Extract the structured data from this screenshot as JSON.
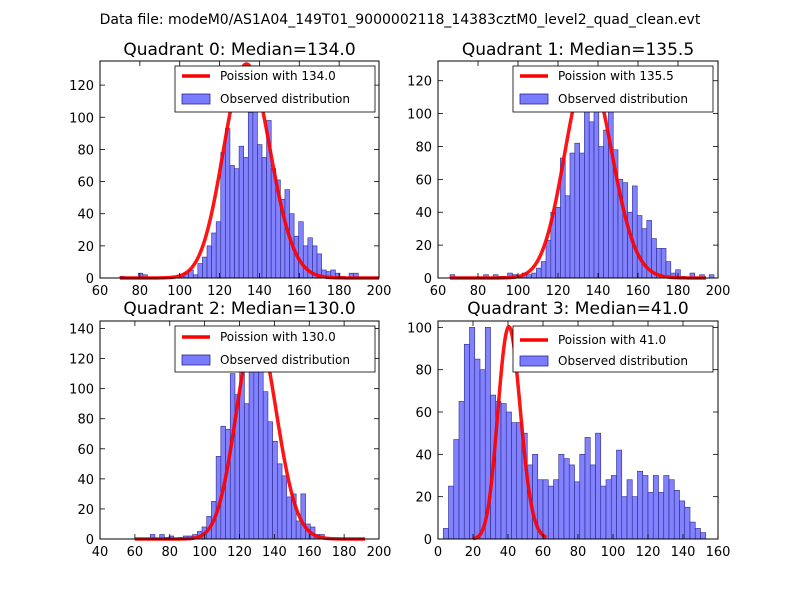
{
  "figure_title": "Data file: modeM0/AS1A04_149T01_9000002118_14383cztM0_level2_quad_clean.evt",
  "colors": {
    "bars": "#7b7bff",
    "bar_edge": "#2a2a8a",
    "poisson": "#ff0000",
    "background": "#ffffff"
  },
  "chart_data": [
    {
      "type": "bar",
      "title": "Quadrant 0: Median=134.0",
      "xlim": [
        60,
        200
      ],
      "ylim": [
        0,
        135
      ],
      "xticks": [
        60,
        80,
        100,
        120,
        140,
        160,
        180,
        200
      ],
      "yticks": [
        0,
        20,
        40,
        60,
        80,
        100,
        120
      ],
      "legend": [
        "Poission with 134.0",
        "Observed distribution"
      ],
      "legend_position": "top-right",
      "bin_start": 70,
      "bin_width": 2.3,
      "counts": [
        1,
        0,
        0,
        0,
        3,
        2,
        0,
        0,
        0,
        0,
        0,
        0,
        0,
        1,
        3,
        5,
        2,
        9,
        13,
        20,
        28,
        35,
        78,
        93,
        70,
        68,
        82,
        75,
        103,
        132,
        83,
        75,
        98,
        68,
        61,
        49,
        55,
        40,
        26,
        35,
        20,
        25,
        20,
        15,
        5,
        4,
        5,
        3,
        1,
        0,
        3,
        3,
        0,
        0,
        0,
        0,
        0,
        0,
        0,
        0
      ],
      "poisson_mean": 134.0,
      "poisson_peak": 133,
      "poisson_x": [
        70,
        200
      ]
    },
    {
      "type": "bar",
      "title": "Quadrant 1: Median=135.5",
      "xlim": [
        60,
        200
      ],
      "ylim": [
        0,
        132
      ],
      "xticks": [
        60,
        80,
        100,
        120,
        140,
        160,
        180,
        200
      ],
      "yticks": [
        0,
        20,
        40,
        60,
        80,
        100,
        120
      ],
      "legend": [
        "Poission with 135.5",
        "Observed distribution"
      ],
      "legend_position": "top-right",
      "bin_start": 66,
      "bin_width": 2.4,
      "counts": [
        2,
        0,
        0,
        0,
        0,
        0,
        0,
        2,
        0,
        2,
        1,
        1,
        3,
        2,
        1,
        3,
        2,
        3,
        6,
        10,
        23,
        40,
        43,
        73,
        50,
        76,
        82,
        76,
        120,
        95,
        126,
        80,
        90,
        120,
        78,
        60,
        58,
        40,
        56,
        38,
        30,
        35,
        24,
        18,
        18,
        10,
        3,
        5,
        1,
        0,
        3,
        0,
        2,
        0,
        2,
        0,
        0,
        0,
        0,
        0
      ],
      "poisson_mean": 135.5,
      "poisson_peak": 127,
      "poisson_x": [
        66,
        194
      ]
    },
    {
      "type": "bar",
      "title": "Quadrant 2: Median=130.0",
      "xlim": [
        40,
        200
      ],
      "ylim": [
        0,
        145
      ],
      "xticks": [
        40,
        60,
        80,
        100,
        120,
        140,
        160,
        180,
        200
      ],
      "yticks": [
        0,
        20,
        40,
        60,
        80,
        100,
        120,
        140
      ],
      "legend": [
        "Poission with 130.0",
        "Observed distribution"
      ],
      "legend_position": "top-right",
      "bin_start": 58,
      "bin_width": 2.7,
      "counts": [
        0,
        0,
        0,
        0,
        3,
        0,
        3,
        1,
        2,
        0,
        1,
        2,
        2,
        3,
        5,
        8,
        15,
        25,
        55,
        75,
        73,
        110,
        96,
        112,
        90,
        118,
        130,
        120,
        98,
        78,
        65,
        50,
        42,
        28,
        30,
        12,
        30,
        10,
        8,
        3,
        3,
        0,
        0,
        0,
        0,
        0,
        0,
        0,
        0,
        0
      ],
      "poisson_mean": 130.0,
      "poisson_peak": 140,
      "poisson_x": [
        60,
        192
      ]
    },
    {
      "type": "bar",
      "title": "Quadrant 3: Median=41.0",
      "xlim": [
        0,
        160
      ],
      "ylim": [
        0,
        103
      ],
      "xticks": [
        0,
        20,
        40,
        60,
        80,
        100,
        120,
        140,
        160
      ],
      "yticks": [
        0,
        20,
        40,
        60,
        80,
        100
      ],
      "legend": [
        "Poission with 41.0",
        "Observed distribution"
      ],
      "legend_position": "top-right",
      "bin_start": 3,
      "bin_width": 3.0,
      "counts": [
        5,
        25,
        47,
        65,
        92,
        100,
        85,
        80,
        100,
        68,
        65,
        64,
        60,
        55,
        55,
        50,
        35,
        40,
        28,
        28,
        25,
        28,
        40,
        38,
        35,
        27,
        40,
        48,
        35,
        50,
        25,
        28,
        30,
        42,
        20,
        28,
        20,
        32,
        30,
        22,
        30,
        22,
        30,
        28,
        23,
        18,
        15,
        8,
        5,
        3
      ],
      "poisson_mean": 41.0,
      "poisson_peak": 100,
      "poisson_x": [
        20,
        62
      ]
    }
  ]
}
